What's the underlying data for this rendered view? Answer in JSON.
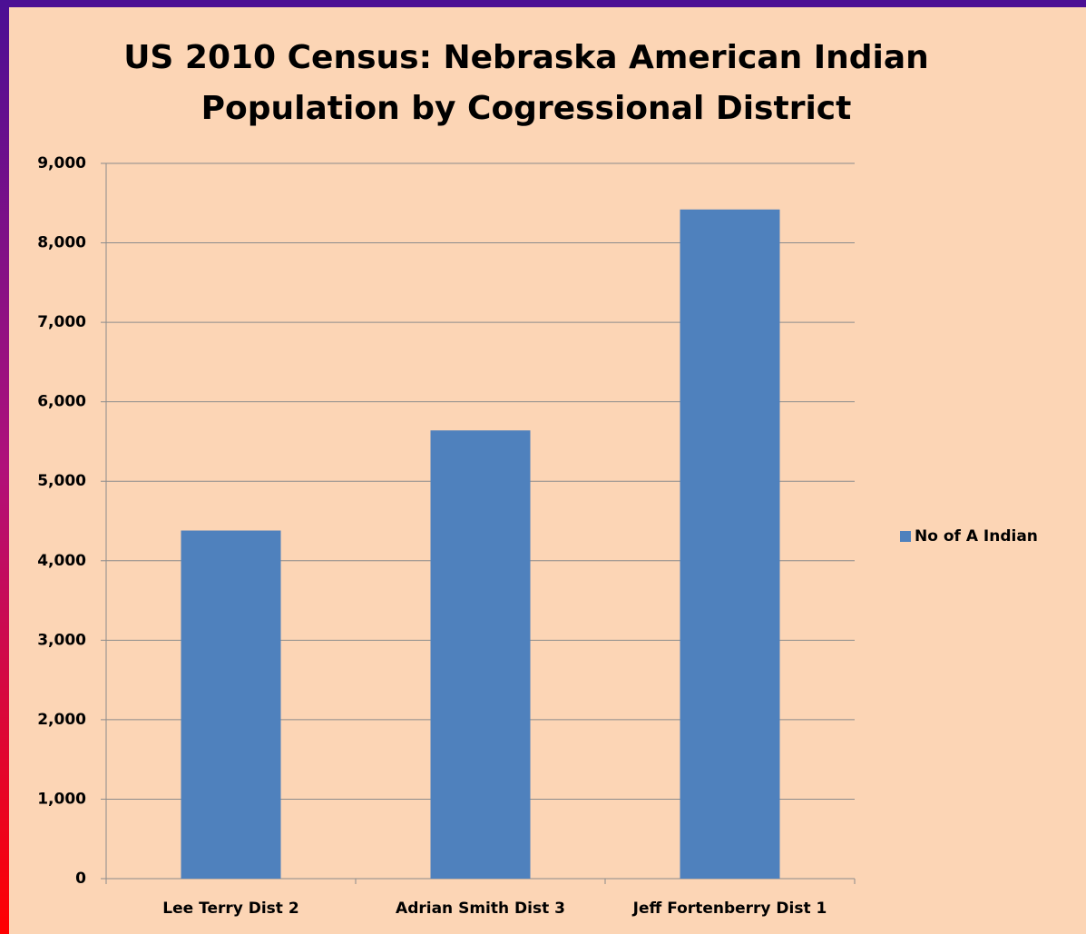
{
  "chart_data": {
    "type": "bar",
    "title": "US 2010 Census: Nebraska  American Indian\nPopulation by Cogressional District",
    "categories": [
      "Lee Terry Dist 2",
      "Adrian Smith Dist 3",
      "Jeff Fortenberry Dist 1"
    ],
    "series": [
      {
        "name": "No of  A Indian",
        "color": "#4f81bd",
        "values": [
          4380,
          5640,
          8420
        ]
      }
    ],
    "ylim": [
      0,
      9000
    ],
    "yticks": [
      0,
      {
        "value": 1000,
        "label": "1,000"
      },
      {
        "value": 2000,
        "label": "2,000"
      },
      {
        "value": 3000,
        "label": "3,000"
      },
      {
        "value": 4000,
        "label": "4,000"
      },
      {
        "value": 5000,
        "label": "5,000"
      },
      {
        "value": 6000,
        "label": "6,000"
      },
      {
        "value": 7000,
        "label": "7,000"
      },
      {
        "value": 8000,
        "label": "8,000"
      },
      {
        "value": 9000,
        "label": "9,000"
      }
    ],
    "grid": true,
    "legend": "right"
  }
}
